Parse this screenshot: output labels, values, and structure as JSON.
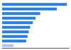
{
  "chart_data": {
    "type": "bar",
    "orientation": "horizontal",
    "categories": [
      null,
      null,
      null,
      null,
      null,
      null,
      null,
      null,
      null,
      null
    ],
    "values": [
      97,
      82,
      57,
      50,
      46,
      42,
      40,
      38,
      36,
      17
    ],
    "colors": [
      "#2a7de1",
      "#2a7de1",
      "#2a7de1",
      "#2a7de1",
      "#2a7de1",
      "#2a7de1",
      "#2a7de1",
      "#2a7de1",
      "#2a7de1",
      "#a8c8f0"
    ],
    "xlim": [
      0,
      100
    ],
    "grid": false,
    "tick_labels": false
  }
}
